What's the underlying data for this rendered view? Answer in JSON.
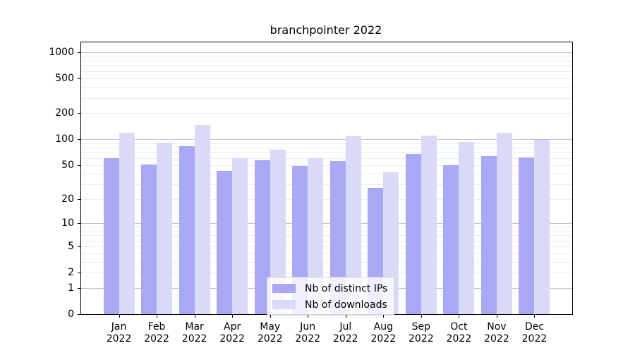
{
  "figure": {
    "background": "#ffffff"
  },
  "chart_data": {
    "type": "bar",
    "title": "branchpointer 2022",
    "months": [
      "Jan",
      "Feb",
      "Mar",
      "Apr",
      "May",
      "Jun",
      "Jul",
      "Aug",
      "Sep",
      "Oct",
      "Nov",
      "Dec"
    ],
    "year": "2022",
    "series": [
      {
        "name": "Nb of distinct IPs",
        "color": "#a8a8f4",
        "values": [
          60,
          51,
          83,
          43,
          57,
          49,
          56,
          27,
          67,
          50,
          64,
          62
        ]
      },
      {
        "name": "Nb of downloads",
        "color": "#d9d9f8",
        "values": [
          120,
          92,
          146,
          60,
          75,
          60,
          108,
          41,
          111,
          93,
          118,
          98
        ]
      }
    ],
    "yscale": "log1p",
    "ylim": [
      0,
      1300
    ],
    "y_ticks": [
      1000,
      500,
      200,
      100,
      50,
      20,
      10,
      5,
      2,
      1,
      0
    ],
    "y_major_gridlines": [
      1,
      10,
      100,
      1000
    ],
    "grid": true,
    "legend_position": "lower-center",
    "colors": {
      "major_grid": "#c2c2c2",
      "minor_grid": "#ececec",
      "spine": "#000000"
    }
  }
}
